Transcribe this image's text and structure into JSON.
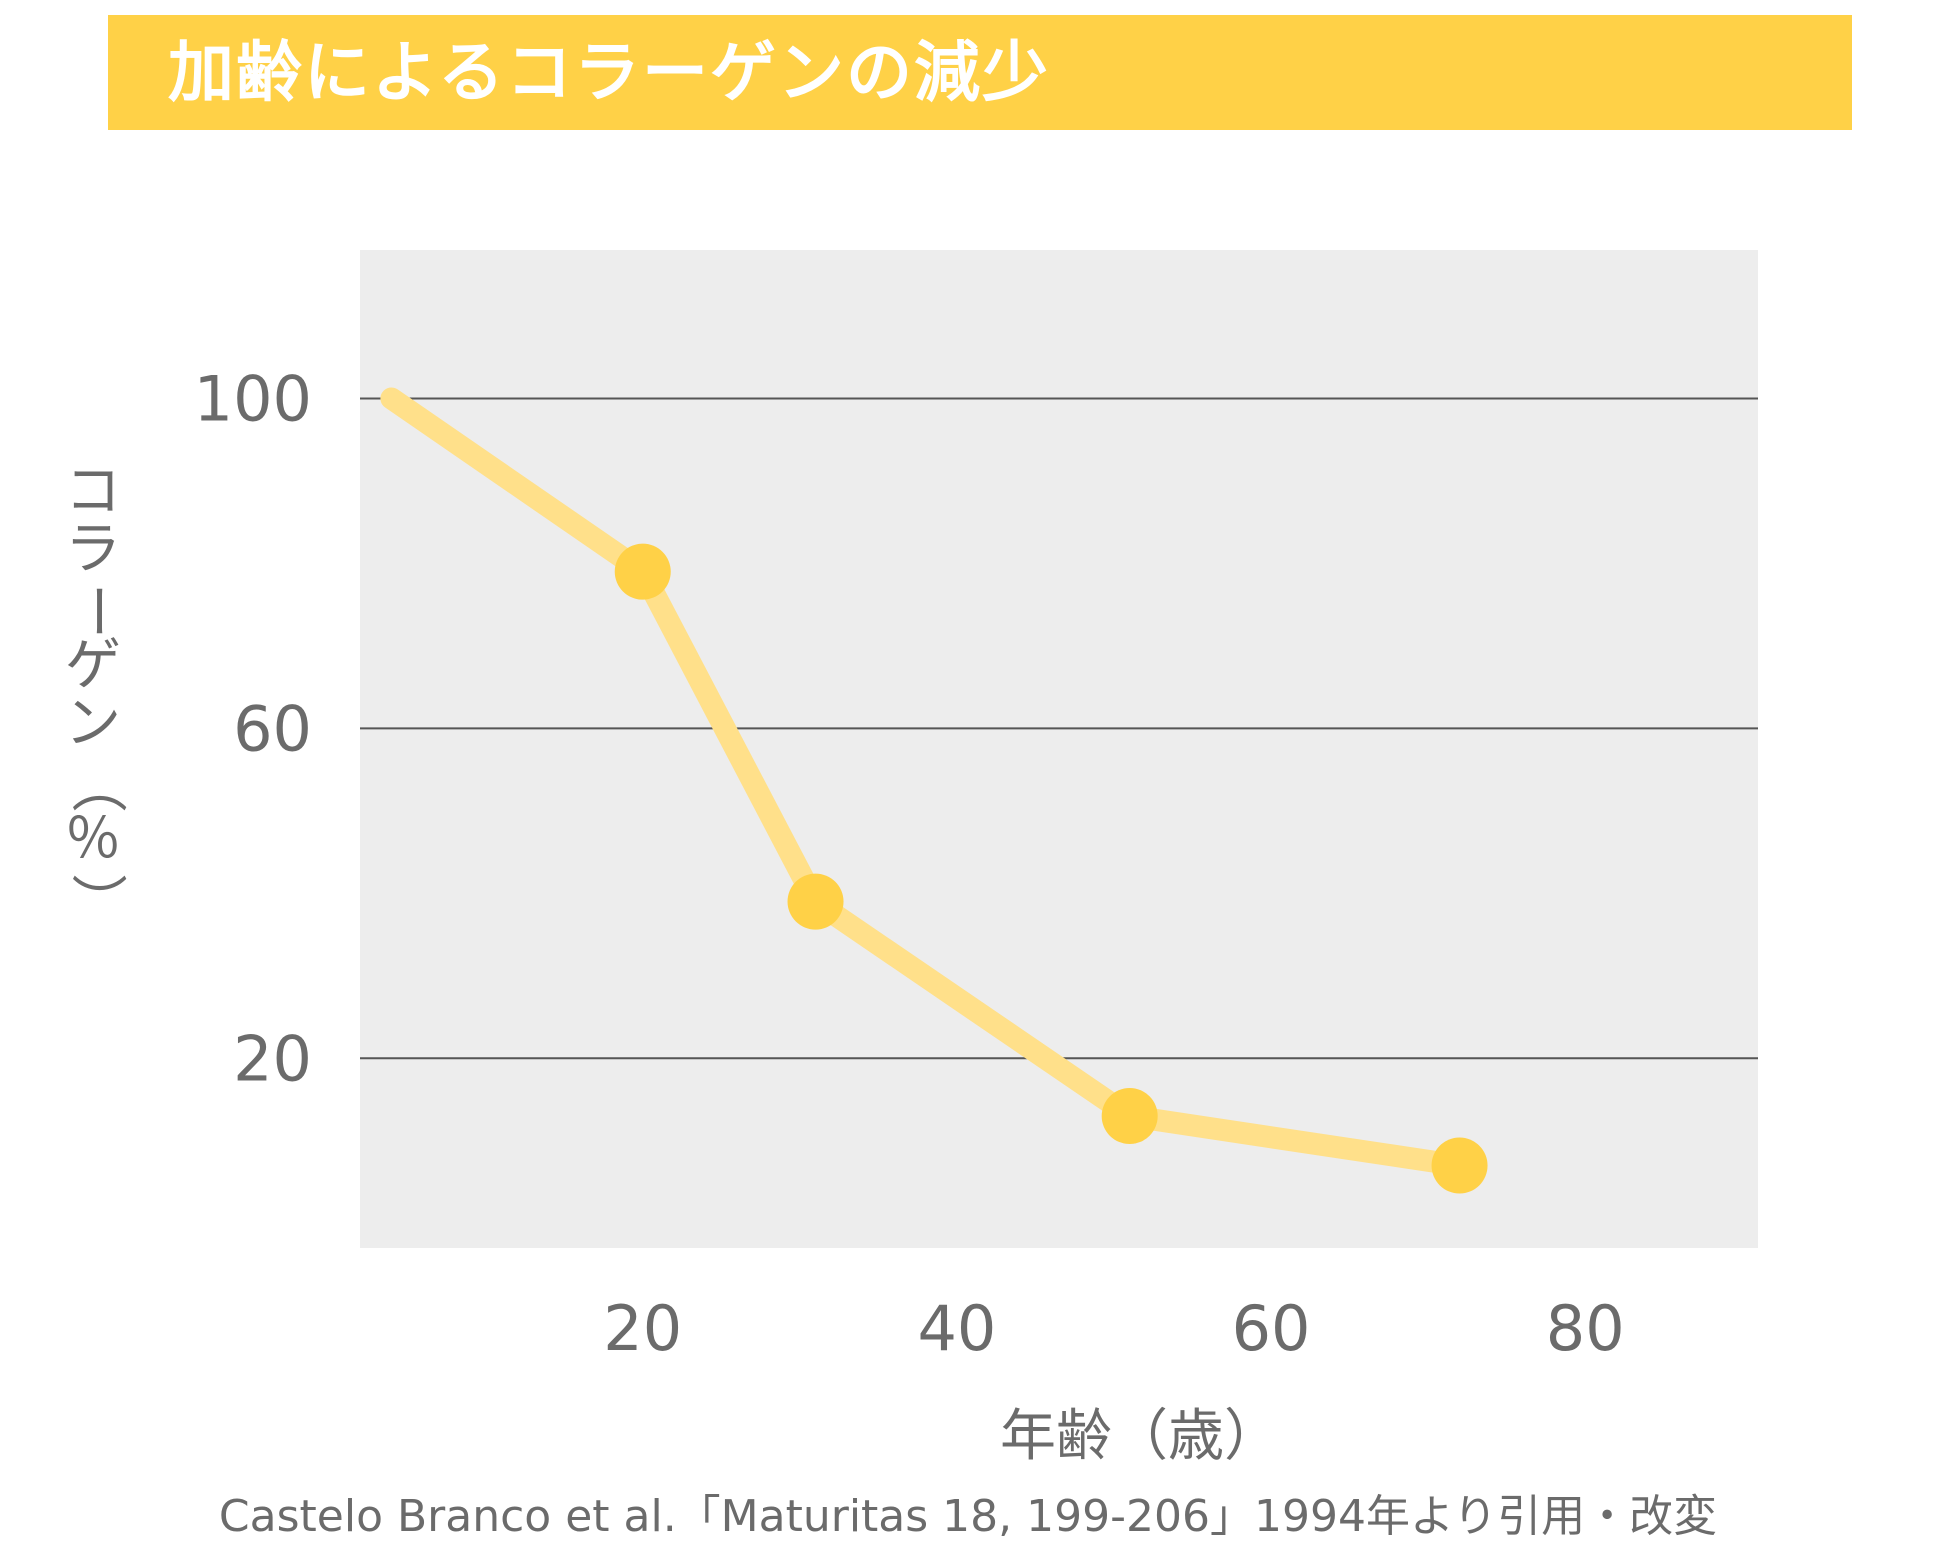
{
  "title": "加齢によるコラーゲンの減少",
  "source": "Castelo Branco et al.「Maturitas 18, 199-206」1994年より引用・改変",
  "colors": {
    "title_bar": "#ffd147",
    "title_text": "#ffffff",
    "plot_background": "#ededed",
    "gridline": "#555555",
    "line": "#ffe08a",
    "marker": "#ffd147",
    "text": "#6b6b6b"
  },
  "chart_data": {
    "type": "line",
    "xlabel": "年齢（歳）",
    "ylabel": "コラーゲン（％）",
    "x_ticks": [
      20,
      40,
      60,
      80
    ],
    "y_ticks": [
      20,
      60,
      100
    ],
    "xlim": [
      2,
      91
    ],
    "ylim": [
      -3,
      118
    ],
    "grid": true,
    "series": [
      {
        "x": [
          4,
          20,
          31,
          51,
          72
        ],
        "y": [
          100,
          79,
          39,
          13,
          7
        ],
        "markers": [
          false,
          true,
          true,
          true,
          true
        ]
      }
    ]
  }
}
